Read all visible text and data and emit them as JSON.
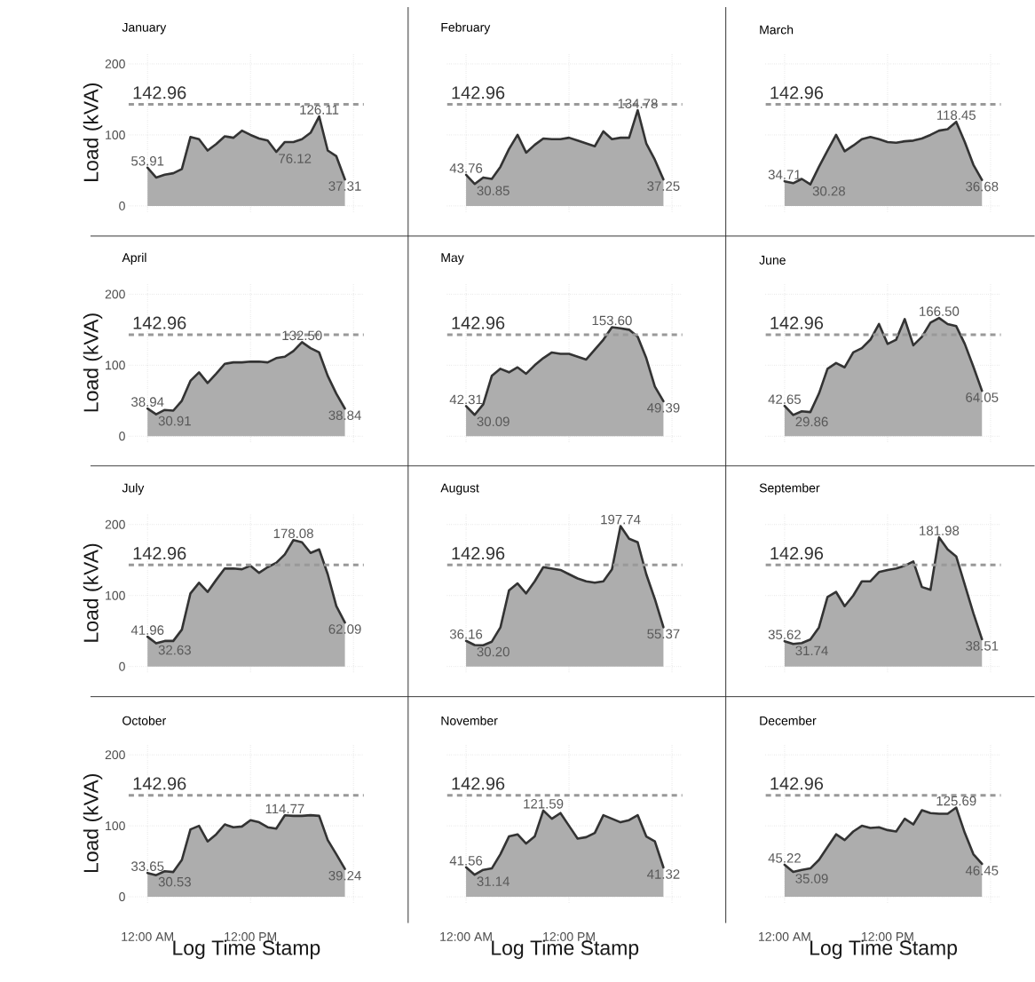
{
  "chart_data": [
    {
      "type": "area",
      "title": "January",
      "ylabel": "Load (kVA)",
      "tick_labels": "y",
      "x": [
        0,
        1,
        2,
        3,
        4,
        5,
        6,
        7,
        8,
        9,
        10,
        11,
        12,
        13,
        14,
        15,
        16,
        17,
        18,
        19,
        20,
        21,
        22,
        23
      ],
      "values": [
        53.91,
        40,
        44,
        46,
        52,
        97,
        94,
        78,
        87,
        98,
        96,
        106,
        100,
        95,
        92,
        76.12,
        90,
        90,
        94,
        103,
        126.11,
        78,
        70,
        37.31
      ],
      "color": "#adadad",
      "xlim": [
        -2.2,
        25.2
      ],
      "ylim": [
        -8,
        215
      ],
      "xticks": [
        {
          "value": 0,
          "label": null
        },
        {
          "value": 12,
          "label": null
        },
        {
          "value": 24,
          "label": null
        }
      ],
      "yticks": [
        0,
        100,
        200
      ],
      "grid": true,
      "ref_lines": [
        {
          "axis": "y",
          "value": 142.96,
          "label": "142.96",
          "color": "#999999",
          "line_style": "dashed"
        }
      ],
      "annotations": [
        {
          "text": "53.91",
          "x": 0,
          "y": 53.91
        },
        {
          "text": "76.12",
          "x": 15,
          "y": 76.12
        },
        {
          "text": "126.11",
          "x": 20,
          "y": 126.11
        },
        {
          "text": "37.31",
          "x": 23,
          "y": 37.31
        }
      ]
    },
    {
      "type": "area",
      "title": "February",
      "tick_labels": false,
      "x": [
        0,
        1,
        2,
        3,
        4,
        5,
        6,
        7,
        8,
        9,
        10,
        11,
        12,
        13,
        14,
        15,
        16,
        17,
        18,
        19,
        20,
        21,
        22,
        23
      ],
      "values": [
        43.76,
        30.85,
        40,
        38,
        55,
        80,
        100,
        75,
        86,
        95,
        94,
        94,
        96,
        92,
        88,
        84,
        105,
        94,
        96,
        96,
        134.78,
        88,
        65,
        37.25
      ],
      "color": "#adadad",
      "xlim": [
        -2.2,
        25.2
      ],
      "ylim": [
        -8,
        215
      ],
      "xticks": [
        {
          "value": 0,
          "label": null
        },
        {
          "value": 12,
          "label": null
        },
        {
          "value": 24,
          "label": null
        }
      ],
      "yticks": [
        0,
        100,
        200
      ],
      "grid": true,
      "ref_lines": [
        {
          "axis": "y",
          "value": 142.96,
          "label": "142.96",
          "color": "#999999",
          "line_style": "dashed"
        }
      ],
      "annotations": [
        {
          "text": "43.76",
          "x": 0,
          "y": 43.76
        },
        {
          "text": "30.85",
          "x": 1,
          "y": 30.85
        },
        {
          "text": "134.78",
          "x": 20,
          "y": 134.78
        },
        {
          "text": "37.25",
          "x": 23,
          "y": 37.25
        }
      ]
    },
    {
      "type": "area",
      "title": "March",
      "tick_labels": false,
      "x": [
        0,
        1,
        2,
        3,
        4,
        5,
        6,
        7,
        8,
        9,
        10,
        11,
        12,
        13,
        14,
        15,
        16,
        17,
        18,
        19,
        20,
        21,
        22,
        23
      ],
      "values": [
        34.71,
        32,
        38,
        30.28,
        55,
        78,
        100,
        77,
        85,
        94,
        97,
        94,
        90,
        89,
        91,
        92,
        95,
        100,
        106,
        108,
        118.45,
        90,
        58,
        36.68
      ],
      "color": "#adadad",
      "xlim": [
        -2.2,
        25.2
      ],
      "ylim": [
        -8,
        215
      ],
      "xticks": [
        {
          "value": 0,
          "label": null
        },
        {
          "value": 12,
          "label": null
        },
        {
          "value": 24,
          "label": null
        }
      ],
      "yticks": [
        0,
        100,
        200
      ],
      "grid": true,
      "ref_lines": [
        {
          "axis": "y",
          "value": 142.96,
          "label": "142.96",
          "color": "#999999",
          "line_style": "dashed"
        }
      ],
      "annotations": [
        {
          "text": "34.71",
          "x": 0,
          "y": 34.71
        },
        {
          "text": "30.28",
          "x": 3,
          "y": 30.28
        },
        {
          "text": "118.45",
          "x": 20,
          "y": 118.45
        },
        {
          "text": "36.68",
          "x": 23,
          "y": 36.68
        }
      ]
    },
    {
      "type": "area",
      "title": "April",
      "ylabel": "Load (kVA)",
      "tick_labels": "y",
      "x": [
        0,
        1,
        2,
        3,
        4,
        5,
        6,
        7,
        8,
        9,
        10,
        11,
        12,
        13,
        14,
        15,
        16,
        17,
        18,
        19,
        20,
        21,
        22,
        23
      ],
      "values": [
        38.94,
        30.91,
        37,
        36,
        50,
        78,
        90,
        75,
        88,
        102,
        104,
        104,
        105,
        105,
        104,
        110,
        112,
        120,
        132.5,
        124,
        118,
        85,
        60,
        38.84
      ],
      "color": "#adadad",
      "xlim": [
        -2.2,
        25.2
      ],
      "ylim": [
        -8,
        215
      ],
      "xticks": [
        {
          "value": 0,
          "label": null
        },
        {
          "value": 12,
          "label": null
        },
        {
          "value": 24,
          "label": null
        }
      ],
      "yticks": [
        0,
        100,
        200
      ],
      "grid": true,
      "ref_lines": [
        {
          "axis": "y",
          "value": 142.96,
          "label": "142.96",
          "color": "#999999",
          "line_style": "dashed"
        }
      ],
      "annotations": [
        {
          "text": "38.94",
          "x": 0,
          "y": 38.94
        },
        {
          "text": "30.91",
          "x": 1,
          "y": 30.91
        },
        {
          "text": "132.50",
          "x": 18,
          "y": 132.5
        },
        {
          "text": "38.84",
          "x": 23,
          "y": 38.84
        }
      ]
    },
    {
      "type": "area",
      "title": "May",
      "tick_labels": false,
      "x": [
        0,
        1,
        2,
        3,
        4,
        5,
        6,
        7,
        8,
        9,
        10,
        11,
        12,
        13,
        14,
        15,
        16,
        17,
        18,
        19,
        20,
        21,
        22,
        23
      ],
      "values": [
        42.31,
        30.09,
        45,
        85,
        95,
        90,
        97,
        88,
        100,
        110,
        118,
        116,
        116,
        112,
        108,
        122,
        136,
        153.6,
        152,
        150,
        140,
        110,
        70,
        49.39
      ],
      "color": "#adadad",
      "xlim": [
        -2.2,
        25.2
      ],
      "ylim": [
        -8,
        215
      ],
      "xticks": [
        {
          "value": 0,
          "label": null
        },
        {
          "value": 12,
          "label": null
        },
        {
          "value": 24,
          "label": null
        }
      ],
      "yticks": [
        0,
        100,
        200
      ],
      "grid": true,
      "ref_lines": [
        {
          "axis": "y",
          "value": 142.96,
          "label": "142.96",
          "color": "#999999",
          "line_style": "dashed"
        }
      ],
      "annotations": [
        {
          "text": "42.31",
          "x": 0,
          "y": 42.31
        },
        {
          "text": "30.09",
          "x": 1,
          "y": 30.09
        },
        {
          "text": "153.60",
          "x": 17,
          "y": 153.6
        },
        {
          "text": "49.39",
          "x": 23,
          "y": 49.39
        }
      ]
    },
    {
      "type": "area",
      "title": "June",
      "tick_labels": false,
      "x": [
        0,
        1,
        2,
        3,
        4,
        5,
        6,
        7,
        8,
        9,
        10,
        11,
        12,
        13,
        14,
        15,
        16,
        17,
        18,
        19,
        20,
        21,
        22,
        23
      ],
      "values": [
        42.65,
        29.86,
        35,
        34,
        60,
        95,
        103,
        97,
        118,
        124,
        136,
        158,
        130,
        136,
        165,
        128,
        140,
        160,
        166.5,
        158,
        155,
        130,
        98,
        64.05
      ],
      "color": "#adadad",
      "xlim": [
        -2.2,
        25.2
      ],
      "ylim": [
        -8,
        215
      ],
      "xticks": [
        {
          "value": 0,
          "label": null
        },
        {
          "value": 12,
          "label": null
        },
        {
          "value": 24,
          "label": null
        }
      ],
      "yticks": [
        0,
        100,
        200
      ],
      "grid": true,
      "ref_lines": [
        {
          "axis": "y",
          "value": 142.96,
          "label": "142.96",
          "color": "#999999",
          "line_style": "dashed"
        }
      ],
      "annotations": [
        {
          "text": "42.65",
          "x": 0,
          "y": 42.65
        },
        {
          "text": "29.86",
          "x": 1,
          "y": 29.86
        },
        {
          "text": "166.50",
          "x": 18,
          "y": 166.5
        },
        {
          "text": "64.05",
          "x": 23,
          "y": 64.05
        }
      ]
    },
    {
      "type": "area",
      "title": "July",
      "ylabel": "Load (kVA)",
      "tick_labels": "y",
      "x": [
        0,
        1,
        2,
        3,
        4,
        5,
        6,
        7,
        8,
        9,
        10,
        11,
        12,
        13,
        14,
        15,
        16,
        17,
        18,
        19,
        20,
        21,
        22,
        23
      ],
      "values": [
        41.96,
        32.63,
        36,
        36,
        52,
        103,
        118,
        105,
        122,
        138,
        138,
        137,
        142,
        132,
        140,
        146,
        158,
        178.08,
        175,
        160,
        165,
        130,
        85,
        62.09
      ],
      "color": "#adadad",
      "xlim": [
        -2.2,
        25.2
      ],
      "ylim": [
        -8,
        215
      ],
      "xticks": [
        {
          "value": 0,
          "label": null
        },
        {
          "value": 12,
          "label": null
        },
        {
          "value": 24,
          "label": null
        }
      ],
      "yticks": [
        0,
        100,
        200
      ],
      "grid": true,
      "ref_lines": [
        {
          "axis": "y",
          "value": 142.96,
          "label": "142.96",
          "color": "#999999",
          "line_style": "dashed"
        }
      ],
      "annotations": [
        {
          "text": "41.96",
          "x": 0,
          "y": 41.96
        },
        {
          "text": "32.63",
          "x": 1,
          "y": 32.63
        },
        {
          "text": "178.08",
          "x": 17,
          "y": 178.08
        },
        {
          "text": "62.09",
          "x": 23,
          "y": 62.09
        }
      ]
    },
    {
      "type": "area",
      "title": "August",
      "tick_labels": false,
      "x": [
        0,
        1,
        2,
        3,
        4,
        5,
        6,
        7,
        8,
        9,
        10,
        11,
        12,
        13,
        14,
        15,
        16,
        17,
        18,
        19,
        20,
        21,
        22,
        23
      ],
      "values": [
        36.16,
        30.2,
        30,
        35,
        55,
        107,
        117,
        103,
        120,
        140,
        138,
        136,
        130,
        124,
        120,
        118,
        120,
        137,
        197.74,
        180,
        175,
        130,
        95,
        55.37
      ],
      "color": "#adadad",
      "xlim": [
        -2.2,
        25.2
      ],
      "ylim": [
        -8,
        215
      ],
      "xticks": [
        {
          "value": 0,
          "label": null
        },
        {
          "value": 12,
          "label": null
        },
        {
          "value": 24,
          "label": null
        }
      ],
      "yticks": [
        0,
        100,
        200
      ],
      "grid": true,
      "ref_lines": [
        {
          "axis": "y",
          "value": 142.96,
          "label": "142.96",
          "color": "#999999",
          "line_style": "dashed"
        }
      ],
      "annotations": [
        {
          "text": "36.16",
          "x": 0,
          "y": 36.16
        },
        {
          "text": "30.20",
          "x": 1,
          "y": 30.2
        },
        {
          "text": "197.74",
          "x": 18,
          "y": 197.74
        },
        {
          "text": "55.37",
          "x": 23,
          "y": 55.37
        }
      ]
    },
    {
      "type": "area",
      "title": "September",
      "tick_labels": false,
      "x": [
        0,
        1,
        2,
        3,
        4,
        5,
        6,
        7,
        8,
        9,
        10,
        11,
        12,
        13,
        14,
        15,
        16,
        17,
        18,
        19,
        20,
        21,
        22,
        23
      ],
      "values": [
        35.62,
        31.74,
        33,
        38,
        55,
        98,
        105,
        85,
        100,
        120,
        120,
        133,
        136,
        138,
        142,
        148,
        112,
        108,
        181.98,
        165,
        155,
        115,
        75,
        38.51
      ],
      "color": "#adadad",
      "xlim": [
        -2.2,
        25.2
      ],
      "ylim": [
        -8,
        215
      ],
      "xticks": [
        {
          "value": 0,
          "label": null
        },
        {
          "value": 12,
          "label": null
        },
        {
          "value": 24,
          "label": null
        }
      ],
      "yticks": [
        0,
        100,
        200
      ],
      "grid": true,
      "ref_lines": [
        {
          "axis": "y",
          "value": 142.96,
          "label": "142.96",
          "color": "#999999",
          "line_style": "dashed"
        }
      ],
      "annotations": [
        {
          "text": "35.62",
          "x": 0,
          "y": 35.62
        },
        {
          "text": "31.74",
          "x": 1,
          "y": 31.74
        },
        {
          "text": "181.98",
          "x": 18,
          "y": 181.98
        },
        {
          "text": "38.51",
          "x": 23,
          "y": 38.51
        }
      ]
    },
    {
      "type": "area",
      "title": "October",
      "xlabel": "Log Time Stamp",
      "ylabel": "Load (kVA)",
      "x": [
        0,
        1,
        2,
        3,
        4,
        5,
        6,
        7,
        8,
        9,
        10,
        11,
        12,
        13,
        14,
        15,
        16,
        17,
        18,
        19,
        20,
        21,
        22,
        23
      ],
      "values": [
        33.65,
        30.53,
        36,
        35,
        52,
        95,
        100,
        78,
        88,
        102,
        98,
        99,
        108,
        105,
        98,
        96,
        114.77,
        114,
        114,
        115,
        114,
        80,
        60,
        39.24
      ],
      "color": "#adadad",
      "xlim": [
        -2.2,
        25.2
      ],
      "ylim": [
        -8,
        215
      ],
      "xticks": [
        {
          "value": 0,
          "label": "12:00 AM"
        },
        {
          "value": 12,
          "label": "12:00 PM"
        },
        {
          "value": 24,
          "label": null
        }
      ],
      "yticks": [
        0,
        100,
        200
      ],
      "grid": true,
      "ref_lines": [
        {
          "axis": "y",
          "value": 142.96,
          "label": "142.96",
          "color": "#999999",
          "line_style": "dashed"
        }
      ],
      "annotations": [
        {
          "text": "33.65",
          "x": 0,
          "y": 33.65
        },
        {
          "text": "30.53",
          "x": 1,
          "y": 30.53
        },
        {
          "text": "114.77",
          "x": 16,
          "y": 114.77
        },
        {
          "text": "39.24",
          "x": 23,
          "y": 39.24
        }
      ]
    },
    {
      "type": "area",
      "title": "November",
      "xlabel": "Log Time Stamp",
      "tick_labels": "x",
      "x": [
        0,
        1,
        2,
        3,
        4,
        5,
        6,
        7,
        8,
        9,
        10,
        11,
        12,
        13,
        14,
        15,
        16,
        17,
        18,
        19,
        20,
        21,
        22,
        23
      ],
      "values": [
        41.56,
        31.14,
        38,
        40,
        60,
        85,
        88,
        75,
        85,
        121.59,
        110,
        118,
        100,
        82,
        84,
        90,
        115,
        110,
        105,
        108,
        115,
        85,
        78,
        41.32
      ],
      "color": "#adadad",
      "xlim": [
        -2.2,
        25.2
      ],
      "ylim": [
        -8,
        215
      ],
      "xticks": [
        {
          "value": 0,
          "label": "12:00 AM"
        },
        {
          "value": 12,
          "label": "12:00 PM"
        },
        {
          "value": 24,
          "label": null
        }
      ],
      "yticks": [
        0,
        100,
        200
      ],
      "grid": true,
      "ref_lines": [
        {
          "axis": "y",
          "value": 142.96,
          "label": "142.96",
          "color": "#999999",
          "line_style": "dashed"
        }
      ],
      "annotations": [
        {
          "text": "41.56",
          "x": 0,
          "y": 41.56
        },
        {
          "text": "31.14",
          "x": 1,
          "y": 31.14
        },
        {
          "text": "121.59",
          "x": 9,
          "y": 121.59
        },
        {
          "text": "41.32",
          "x": 23,
          "y": 41.32
        }
      ]
    },
    {
      "type": "area",
      "title": "December",
      "xlabel": "Log Time Stamp",
      "tick_labels": "x",
      "x": [
        0,
        1,
        2,
        3,
        4,
        5,
        6,
        7,
        8,
        9,
        10,
        11,
        12,
        13,
        14,
        15,
        16,
        17,
        18,
        19,
        20,
        21,
        22,
        23
      ],
      "values": [
        45.22,
        35.09,
        38,
        40,
        52,
        70,
        88,
        80,
        92,
        100,
        97,
        98,
        94,
        92,
        110,
        102,
        122,
        118,
        117,
        117,
        125.69,
        90,
        60,
        46.45
      ],
      "color": "#adadad",
      "xlim": [
        -2.2,
        25.2
      ],
      "ylim": [
        -8,
        215
      ],
      "xticks": [
        {
          "value": 0,
          "label": "12:00 AM"
        },
        {
          "value": 12,
          "label": "12:00 PM"
        },
        {
          "value": 24,
          "label": null
        }
      ],
      "yticks": [
        0,
        100,
        200
      ],
      "grid": true,
      "ref_lines": [
        {
          "axis": "y",
          "value": 142.96,
          "label": "142.96",
          "color": "#999999",
          "line_style": "dashed"
        }
      ],
      "annotations": [
        {
          "text": "45.22",
          "x": 0,
          "y": 45.22
        },
        {
          "text": "35.09",
          "x": 1,
          "y": 35.09
        },
        {
          "text": "125.69",
          "x": 20,
          "y": 125.69
        },
        {
          "text": "46.45",
          "x": 23,
          "y": 46.45
        }
      ]
    }
  ]
}
